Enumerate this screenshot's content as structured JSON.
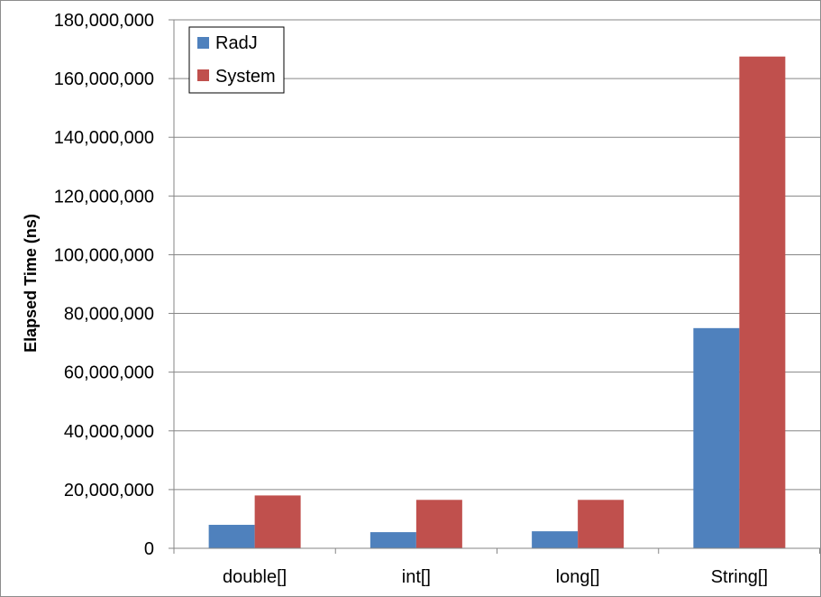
{
  "chart_data": {
    "type": "bar",
    "title": "",
    "xlabel": "",
    "ylabel": "Elapsed Time (ns)",
    "categories": [
      "double[]",
      "int[]",
      "long[]",
      "String[]"
    ],
    "series": [
      {
        "name": "RadJ",
        "values": [
          8000000,
          5500000,
          5800000,
          75000000
        ],
        "color": "#4f81bd"
      },
      {
        "name": "System",
        "values": [
          18000000,
          16500000,
          16500000,
          167500000
        ],
        "color": "#c0504d"
      }
    ],
    "ylim": [
      0,
      180000000
    ],
    "yticks": [
      0,
      20000000,
      40000000,
      60000000,
      80000000,
      100000000,
      120000000,
      140000000,
      160000000,
      180000000
    ],
    "ytick_labels": [
      "0",
      "20,000,000",
      "40,000,000",
      "60,000,000",
      "80,000,000",
      "100,000,000",
      "120,000,000",
      "140,000,000",
      "160,000,000",
      "180,000,000"
    ],
    "grid": true,
    "legend_position": "top-left"
  }
}
